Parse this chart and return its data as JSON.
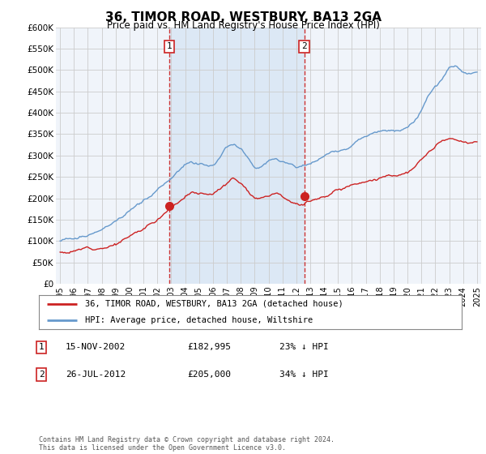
{
  "title": "36, TIMOR ROAD, WESTBURY, BA13 2GA",
  "subtitle": "Price paid vs. HM Land Registry's House Price Index (HPI)",
  "plot_bg_color": "#f0f4fa",
  "grid_color": "#cccccc",
  "shade_color": "#dce8f5",
  "ylim": [
    0,
    600000
  ],
  "yticks": [
    0,
    50000,
    100000,
    150000,
    200000,
    250000,
    300000,
    350000,
    400000,
    450000,
    500000,
    550000,
    600000
  ],
  "ytick_labels": [
    "£0",
    "£50K",
    "£100K",
    "£150K",
    "£200K",
    "£250K",
    "£300K",
    "£350K",
    "£400K",
    "£450K",
    "£500K",
    "£550K",
    "£600K"
  ],
  "sale1_date": 2002.88,
  "sale1_price": 182995,
  "sale1_label": "1",
  "sale2_date": 2012.565,
  "sale2_price": 205000,
  "sale2_label": "2",
  "hpi_color": "#6699cc",
  "price_color": "#cc2222",
  "dashed_line_color": "#cc3333",
  "legend_entries": [
    "36, TIMOR ROAD, WESTBURY, BA13 2GA (detached house)",
    "HPI: Average price, detached house, Wiltshire"
  ],
  "table_entries": [
    {
      "num": "1",
      "date": "15-NOV-2002",
      "price": "£182,995",
      "note": "23% ↓ HPI"
    },
    {
      "num": "2",
      "date": "26-JUL-2012",
      "price": "£205,000",
      "note": "34% ↓ HPI"
    }
  ],
  "footnote": "Contains HM Land Registry data © Crown copyright and database right 2024.\nThis data is licensed under the Open Government Licence v3.0."
}
